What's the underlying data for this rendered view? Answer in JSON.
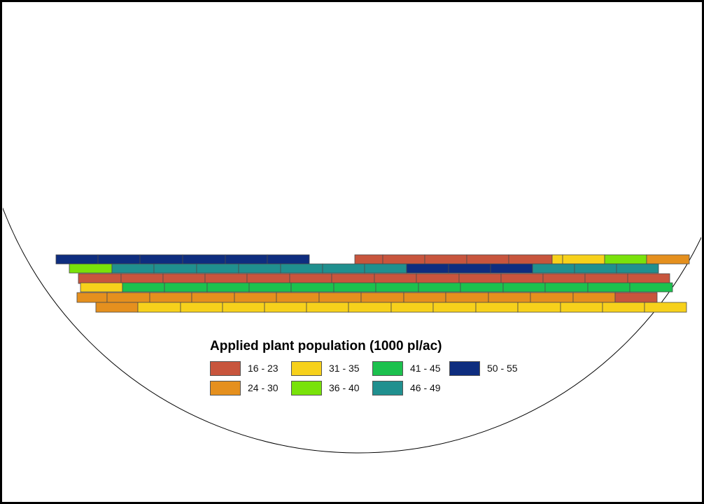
{
  "legend": {
    "title": "Applied plant population (1000 pl/ac)",
    "classes": [
      {
        "key": "c1",
        "label": "16 - 23",
        "color": "#c8553d"
      },
      {
        "key": "c2",
        "label": "24 - 30",
        "color": "#e5901e"
      },
      {
        "key": "c3",
        "label": "31 - 35",
        "color": "#f7d11b"
      },
      {
        "key": "c4",
        "label": "36 - 40",
        "color": "#79e20a"
      },
      {
        "key": "c5",
        "label": "41 - 45",
        "color": "#1cc14e"
      },
      {
        "key": "c6",
        "label": "46 - 49",
        "color": "#20908f"
      },
      {
        "key": "c7",
        "label": "50 - 55",
        "color": "#0e2d7f"
      }
    ]
  },
  "chart_data": {
    "type": "map",
    "title": "Applied plant population (1000 pl/ac)",
    "legend_placement": "bottom-center",
    "strips": [
      [
        "c7",
        "c7",
        "c7",
        "c7",
        "c7",
        "c7",
        "gap",
        "c1",
        "c1",
        "c1",
        "c1",
        "c1",
        "c3",
        "c3",
        "c4",
        "c2"
      ],
      [
        "c4",
        "c6",
        "c6",
        "c6",
        "c6",
        "c6",
        "c6",
        "c6",
        "c7",
        "c7",
        "c7",
        "c6",
        "c6",
        "c6"
      ],
      [
        "c1",
        "c1",
        "c1",
        "c1",
        "c1",
        "c1",
        "c1",
        "c1",
        "c1",
        "c1",
        "c1",
        "c1",
        "c1",
        "c1"
      ],
      [
        "c3",
        "c5",
        "c5",
        "c5",
        "c5",
        "c5",
        "c5",
        "c5",
        "c5",
        "c5",
        "c5",
        "c5",
        "c5",
        "c5"
      ],
      [
        "c2",
        "c2",
        "c2",
        "c2",
        "c2",
        "c2",
        "c2",
        "c2",
        "c2",
        "c2",
        "c2",
        "c2",
        "c2",
        "c1"
      ],
      [
        "c2",
        "c3",
        "c3",
        "c3",
        "c3",
        "c3",
        "c3",
        "c3",
        "c3",
        "c3",
        "c3",
        "c3",
        "c3",
        "c3"
      ]
    ]
  }
}
